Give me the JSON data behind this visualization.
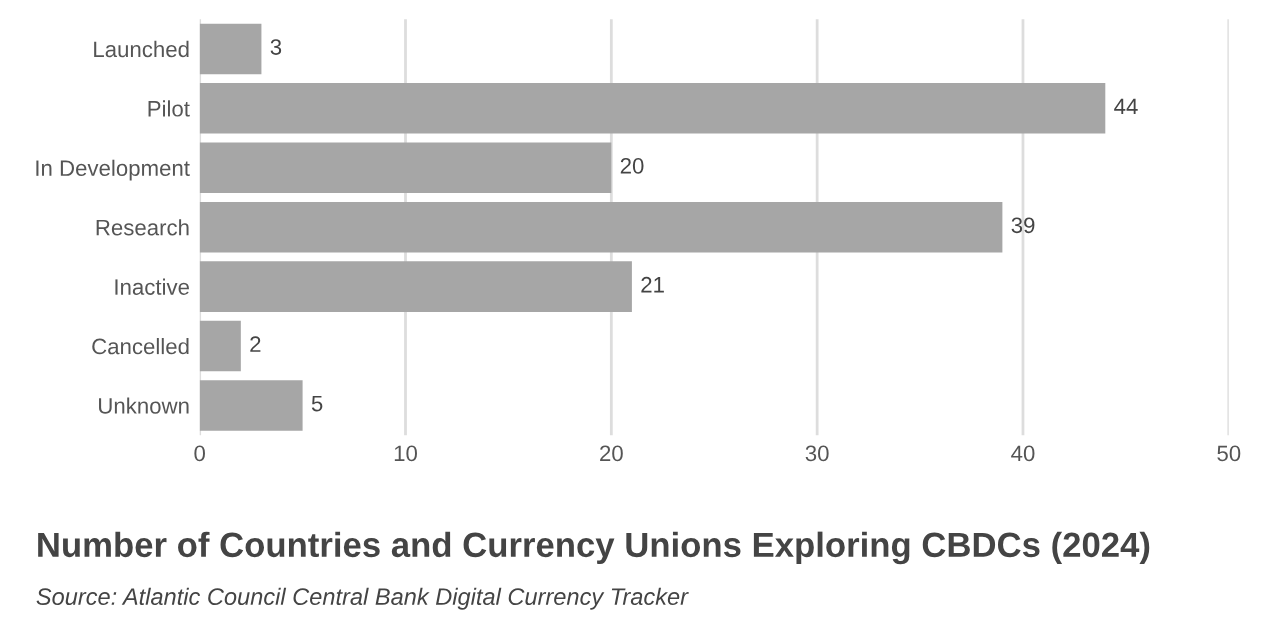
{
  "chart_data": {
    "type": "bar",
    "orientation": "horizontal",
    "title": "Number of Countries and Currency Unions Exploring CBDCs (2024)",
    "annotations": [
      "Source: Atlantic Council Central Bank Digital Currency Tracker"
    ],
    "categories": [
      "Launched",
      "Pilot",
      "In Development",
      "Research",
      "Inactive",
      "Cancelled",
      "Unknown"
    ],
    "values": [
      3,
      44,
      20,
      39,
      21,
      2,
      5
    ],
    "color": "#a6a6a6",
    "xlim": [
      0,
      50
    ],
    "xticks": [
      0,
      10,
      20,
      30,
      40,
      50
    ],
    "grid": "x",
    "data_labels": true,
    "legend": false
  }
}
